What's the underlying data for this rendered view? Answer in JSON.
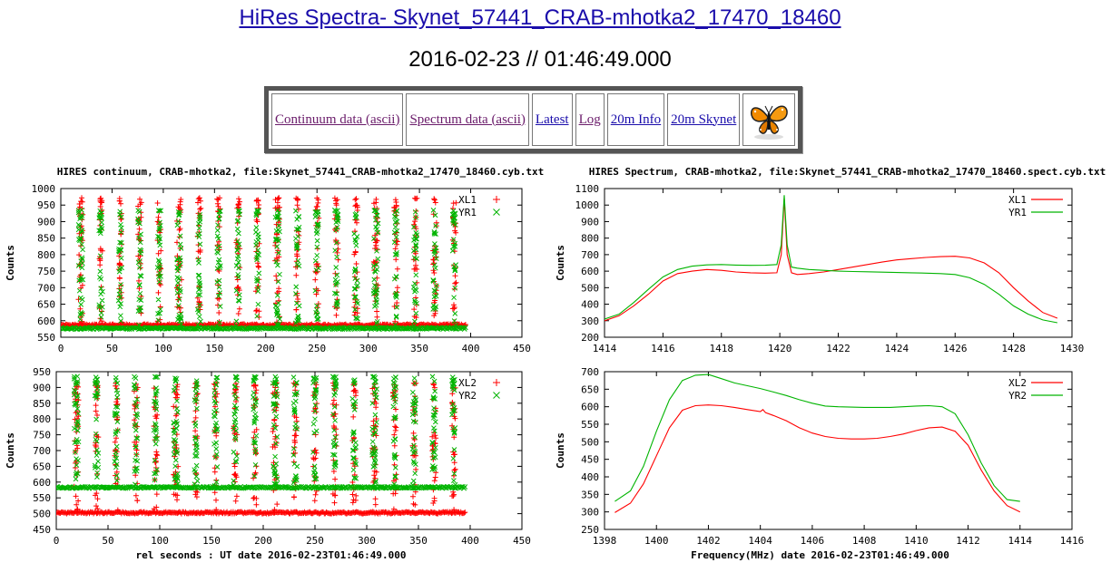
{
  "page": {
    "title": "HiRes Spectra- Skynet_57441_CRAB-mhotka2_17470_18460",
    "date": "2016-02-23 // 01:46:49.000"
  },
  "nav": [
    {
      "label": "Continuum data (ascii)",
      "visited": true
    },
    {
      "label": "Spectrum data (ascii)",
      "visited": true
    },
    {
      "label": "Latest",
      "visited": false
    },
    {
      "label": "Log",
      "visited": true
    },
    {
      "label": "20m Info",
      "visited": false
    },
    {
      "label": "20m Skynet",
      "visited": false
    }
  ],
  "nav_icon": "butterfly-icon",
  "colors": {
    "red": "#ff0000",
    "green": "#00b400"
  },
  "chart_data": [
    {
      "id": "cont1",
      "type": "scatter",
      "title": "HIRES continuum, CRAB-mhotka2, file:Skynet_57441_CRAB-mhotka2_17470_18460.cyb.txt",
      "xlabel": "",
      "ylabel": "Counts",
      "xlim": [
        0,
        450
      ],
      "ylim": [
        550,
        1000
      ],
      "xticks": [
        0,
        50,
        100,
        150,
        200,
        250,
        300,
        350,
        400,
        450
      ],
      "yticks": [
        550,
        600,
        650,
        700,
        750,
        800,
        850,
        900,
        950,
        1000
      ],
      "legend_position": "top-right",
      "pattern": {
        "x_start": 0,
        "x_end": 395,
        "period": 19.2,
        "first_peak": 19.5,
        "peak_halfwidth": 1.6,
        "point_step": 1.0
      },
      "series": [
        {
          "name": "XL1",
          "marker": "plus",
          "color": "#ff0000",
          "baseline": 587,
          "peak": 972
        },
        {
          "name": "YR1",
          "marker": "cross",
          "color": "#00b400",
          "baseline": 577,
          "peak": 935
        }
      ]
    },
    {
      "id": "cont2",
      "type": "scatter",
      "title": "",
      "xlabel": "rel seconds : UT date 2016-02-23T01:46:49.000",
      "ylabel": "Counts",
      "xlim": [
        0,
        450
      ],
      "ylim": [
        450,
        950
      ],
      "xticks": [
        0,
        50,
        100,
        150,
        200,
        250,
        300,
        350,
        400,
        450
      ],
      "yticks": [
        450,
        500,
        550,
        600,
        650,
        700,
        750,
        800,
        850,
        900,
        950
      ],
      "legend_position": "top-right",
      "pattern": {
        "x_start": 0,
        "x_end": 395,
        "period": 19.2,
        "first_peak": 19.5,
        "peak_halfwidth": 1.6,
        "point_step": 1.0
      },
      "series": [
        {
          "name": "XL2",
          "marker": "plus",
          "color": "#ff0000",
          "baseline": 503,
          "peak": 915
        },
        {
          "name": "YR2",
          "marker": "cross",
          "color": "#00b400",
          "baseline": 583,
          "peak": 935
        }
      ]
    },
    {
      "id": "spec1",
      "type": "line",
      "title": "HIRES Spectrum, CRAB-mhotka2, file:Skynet_57441_CRAB-mhotka2_17470_18460.spect.cyb.txt",
      "xlabel": "",
      "ylabel": "Counts",
      "xlim": [
        1414,
        1430
      ],
      "ylim": [
        200,
        1100
      ],
      "xticks": [
        1414,
        1416,
        1418,
        1420,
        1422,
        1424,
        1426,
        1428,
        1430
      ],
      "yticks": [
        200,
        300,
        400,
        500,
        600,
        700,
        800,
        900,
        1000,
        1100
      ],
      "legend_position": "top-right",
      "series": [
        {
          "name": "XL1",
          "color": "#ff0000",
          "x": [
            1414.0,
            1414.5,
            1415.0,
            1415.5,
            1416.0,
            1416.5,
            1417.0,
            1417.5,
            1418.0,
            1418.5,
            1419.0,
            1419.5,
            1419.9,
            1420.05,
            1420.15,
            1420.25,
            1420.4,
            1420.6,
            1421.0,
            1421.5,
            1422.0,
            1422.5,
            1423.0,
            1423.5,
            1424.0,
            1424.5,
            1425.0,
            1425.5,
            1426.0,
            1426.5,
            1427.0,
            1427.5,
            1428.0,
            1428.5,
            1429.0,
            1429.5
          ],
          "y": [
            300,
            330,
            390,
            460,
            540,
            585,
            600,
            610,
            605,
            595,
            590,
            588,
            590,
            700,
            1040,
            700,
            590,
            580,
            585,
            595,
            610,
            625,
            640,
            655,
            668,
            676,
            683,
            688,
            690,
            680,
            650,
            590,
            500,
            420,
            350,
            315
          ]
        },
        {
          "name": "YR1",
          "color": "#00b400",
          "x": [
            1414.0,
            1414.5,
            1415.0,
            1415.5,
            1416.0,
            1416.5,
            1417.0,
            1417.5,
            1418.0,
            1418.5,
            1419.0,
            1419.5,
            1419.9,
            1420.05,
            1420.15,
            1420.25,
            1420.4,
            1420.6,
            1421.0,
            1421.5,
            1422.0,
            1422.5,
            1423.0,
            1423.5,
            1424.0,
            1424.5,
            1425.0,
            1425.5,
            1426.0,
            1426.5,
            1427.0,
            1427.5,
            1428.0,
            1428.5,
            1429.0,
            1429.5
          ],
          "y": [
            310,
            340,
            410,
            490,
            565,
            610,
            630,
            638,
            640,
            637,
            635,
            636,
            640,
            760,
            1060,
            760,
            625,
            618,
            610,
            605,
            600,
            598,
            596,
            594,
            592,
            590,
            588,
            585,
            580,
            560,
            520,
            460,
            390,
            340,
            305,
            288
          ]
        }
      ]
    },
    {
      "id": "spec2",
      "type": "line",
      "title": "",
      "xlabel": "Frequency(MHz) date 2016-02-23T01:46:49.000",
      "ylabel": "Counts",
      "xlim": [
        1398,
        1416
      ],
      "ylim": [
        250,
        700
      ],
      "xticks": [
        1398,
        1400,
        1402,
        1404,
        1406,
        1408,
        1410,
        1412,
        1414,
        1416
      ],
      "yticks": [
        250,
        300,
        350,
        400,
        450,
        500,
        550,
        600,
        650,
        700
      ],
      "legend_position": "top-right",
      "series": [
        {
          "name": "XL2",
          "color": "#ff0000",
          "x": [
            1398.4,
            1399.0,
            1399.5,
            1400.0,
            1400.5,
            1401.0,
            1401.5,
            1402.0,
            1402.5,
            1403.0,
            1403.5,
            1404.0,
            1404.1,
            1404.2,
            1404.5,
            1405.0,
            1405.5,
            1406.0,
            1406.5,
            1407.0,
            1407.5,
            1408.0,
            1408.5,
            1409.0,
            1409.5,
            1410.0,
            1410.5,
            1411.0,
            1411.5,
            1412.0,
            1412.5,
            1413.0,
            1413.5,
            1414.0
          ],
          "y": [
            298,
            325,
            380,
            460,
            540,
            590,
            603,
            605,
            603,
            598,
            592,
            586,
            592,
            583,
            575,
            560,
            540,
            525,
            515,
            510,
            508,
            508,
            510,
            515,
            522,
            532,
            540,
            542,
            530,
            490,
            420,
            360,
            318,
            300
          ]
        },
        {
          "name": "YR2",
          "color": "#00b400",
          "x": [
            1398.4,
            1399.0,
            1399.5,
            1400.0,
            1400.5,
            1401.0,
            1401.5,
            1402.0,
            1402.5,
            1403.0,
            1403.5,
            1404.0,
            1404.5,
            1405.0,
            1405.5,
            1406.0,
            1406.5,
            1407.0,
            1407.5,
            1408.0,
            1408.5,
            1409.0,
            1409.5,
            1410.0,
            1410.5,
            1411.0,
            1411.5,
            1412.0,
            1412.5,
            1413.0,
            1413.5,
            1414.0
          ],
          "y": [
            330,
            360,
            430,
            530,
            620,
            675,
            690,
            692,
            680,
            668,
            660,
            652,
            642,
            632,
            620,
            610,
            602,
            600,
            599,
            598,
            598,
            598,
            600,
            602,
            603,
            600,
            580,
            520,
            440,
            375,
            335,
            330
          ]
        }
      ]
    }
  ]
}
